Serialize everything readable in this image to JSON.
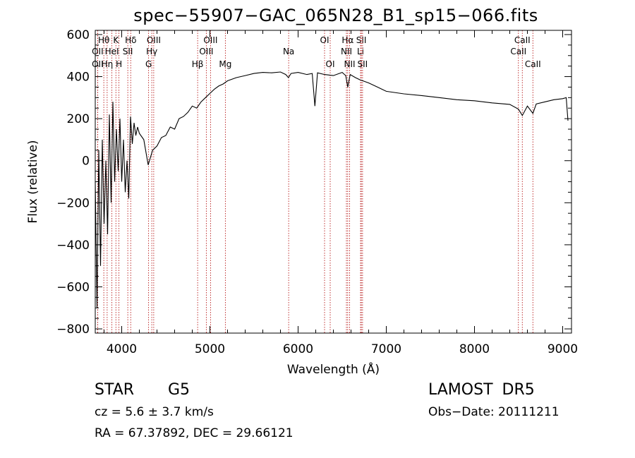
{
  "chart_data": {
    "type": "line",
    "title": "spec−55907−GAC_065N28_B1_sp15−066.fits",
    "xlabel": "Wavelength (Å)",
    "ylabel": "Flux (relative)",
    "xlim": [
      3700,
      9100
    ],
    "ylim": [
      -820,
      620
    ],
    "x_ticks": [
      {
        "value": 4000,
        "label": "4000"
      },
      {
        "value": 5000,
        "label": "5000"
      },
      {
        "value": 6000,
        "label": "6000"
      },
      {
        "value": 7000,
        "label": "7000"
      },
      {
        "value": 8000,
        "label": "8000"
      },
      {
        "value": 9000,
        "label": "9000"
      }
    ],
    "y_ticks": [
      {
        "value": 600,
        "label": "600"
      },
      {
        "value": 400,
        "label": "400"
      },
      {
        "value": 200,
        "label": "200"
      },
      {
        "value": 0,
        "label": "0"
      },
      {
        "value": -200,
        "label": "−200"
      },
      {
        "value": -400,
        "label": "−400"
      },
      {
        "value": -600,
        "label": "−600"
      },
      {
        "value": -800,
        "label": "−800"
      }
    ],
    "grid": false,
    "series": [
      {
        "x": [
          3700,
          3720,
          3740,
          3760,
          3780,
          3800,
          3820,
          3840,
          3860,
          3880,
          3900,
          3920,
          3940,
          3960,
          3980,
          4000,
          4020,
          4040,
          4060,
          4080,
          4100,
          4120,
          4140,
          4160,
          4180,
          4200,
          4250,
          4300,
          4350,
          4400,
          4450,
          4500,
          4550,
          4600,
          4650,
          4700,
          4750,
          4800,
          4850,
          4900,
          4950,
          5000,
          5050,
          5100,
          5150,
          5200,
          5300,
          5400,
          5500,
          5600,
          5700,
          5800,
          5860,
          5890,
          5920,
          6000,
          6100,
          6160,
          6190,
          6220,
          6300,
          6400,
          6500,
          6540,
          6563,
          6590,
          6650,
          6700,
          6800,
          6900,
          7000,
          7200,
          7400,
          7600,
          7800,
          8000,
          8200,
          8400,
          8498,
          8542,
          8600,
          8662,
          8700,
          8800,
          8900,
          9000,
          9040,
          9060
        ],
        "y": [
          -100,
          -700,
          50,
          -500,
          100,
          -300,
          0,
          -350,
          220,
          -200,
          280,
          -100,
          150,
          -50,
          200,
          -100,
          100,
          -150,
          0,
          -180,
          210,
          80,
          180,
          120,
          160,
          130,
          100,
          -20,
          50,
          70,
          110,
          120,
          160,
          150,
          200,
          210,
          230,
          260,
          250,
          280,
          300,
          320,
          340,
          355,
          365,
          380,
          395,
          405,
          415,
          420,
          418,
          422,
          410,
          395,
          415,
          420,
          410,
          415,
          260,
          418,
          410,
          405,
          420,
          405,
          350,
          410,
          395,
          385,
          370,
          350,
          330,
          318,
          310,
          300,
          290,
          285,
          275,
          268,
          245,
          215,
          260,
          225,
          270,
          280,
          290,
          295,
          300,
          190
        ]
      }
    ],
    "line_markers": [
      {
        "label": "Hθ",
        "x": 3797,
        "row": 1
      },
      {
        "label": "OII",
        "x": 3727,
        "row": 2
      },
      {
        "label": "OII",
        "x": 3727,
        "row": 3
      },
      {
        "label": "K",
        "x": 3934,
        "row": 1
      },
      {
        "label": "HeI",
        "x": 3889,
        "row": 2
      },
      {
        "label": "Hη",
        "x": 3835,
        "row": 3
      },
      {
        "label": "H",
        "x": 3969,
        "row": 3
      },
      {
        "label": "Hδ",
        "x": 4102,
        "row": 1
      },
      {
        "label": "SII",
        "x": 4069,
        "row": 2
      },
      {
        "label": "OIII",
        "x": 4363,
        "row": 1
      },
      {
        "label": "Hγ",
        "x": 4341,
        "row": 2
      },
      {
        "label": "G",
        "x": 4305,
        "row": 3
      },
      {
        "label": "OIII",
        "x": 5007,
        "row": 1
      },
      {
        "label": "OIII",
        "x": 4959,
        "row": 2
      },
      {
        "label": "Hβ",
        "x": 4861,
        "row": 3
      },
      {
        "label": "Mg",
        "x": 5175,
        "row": 3
      },
      {
        "label": "Na",
        "x": 5893,
        "row": 2
      },
      {
        "label": "OI",
        "x": 6300,
        "row": 1
      },
      {
        "label": "OI",
        "x": 6364,
        "row": 3
      },
      {
        "label": "Hα",
        "x": 6563,
        "row": 1
      },
      {
        "label": "NII",
        "x": 6548,
        "row": 2
      },
      {
        "label": "NII",
        "x": 6584,
        "row": 3
      },
      {
        "label": "SII",
        "x": 6717,
        "row": 1
      },
      {
        "label": "Li",
        "x": 6708,
        "row": 2
      },
      {
        "label": "SII",
        "x": 6731,
        "row": 3
      },
      {
        "label": "CaII",
        "x": 8542,
        "row": 1
      },
      {
        "label": "CaII",
        "x": 8498,
        "row": 2
      },
      {
        "label": "CaII",
        "x": 8662,
        "row": 3
      }
    ],
    "marker_color": "#b00000",
    "line_color": "#000000"
  },
  "info": {
    "object_class": "STAR",
    "subclass": "G5",
    "survey": "LAMOST  DR5",
    "cz": "cz = 5.6 ± 3.7 km/s",
    "obs_date": "Obs−Date: 20111211",
    "coords": "RA =  67.37892, DEC =  29.66121"
  }
}
